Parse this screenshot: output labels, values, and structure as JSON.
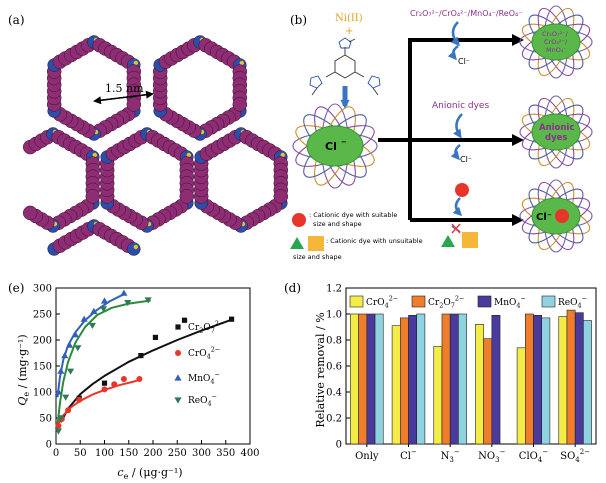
{
  "panel_a": {
    "label": "(a)",
    "scale_label": "1.5 nm",
    "colors": {
      "ring": "#8e2d74",
      "node": "#2a4fa8",
      "metal": "#e8c22c"
    }
  },
  "panel_b": {
    "label": "(b)",
    "ni_label": "Ni(II)",
    "plus_label": "+",
    "cl_label": "Cl",
    "cl_sup": "−",
    "top_anions": "Cr₂O₇²⁻/CrO₄²⁻/MnO₄⁻/ReO₄⁻",
    "top_cage_text_1": "Cr₂O₇²⁻/",
    "top_cage_text_2": "CrO₄²⁻/",
    "top_cage_text_3": "MnO₄⁻",
    "cl_release_top": "Cl⁻",
    "anionic_dyes_label": "Anionic dyes",
    "anionic_cage_text_1": "Anionic",
    "anionic_cage_text_2": "dyes",
    "cl_release_mid": "Cl⁻",
    "bottom_cage_text": "Cl⁻",
    "legend_cationic_suitable_1": ": Cationic dye with suitable",
    "legend_cationic_suitable_2": "size and shape",
    "legend_cationic_unsuitable_1": ": Cationic dye with unsuitable",
    "legend_cationic_unsuitable_2": "size and shape",
    "colors": {
      "arrow": "#3a75c4",
      "cage": "#5ab84a",
      "red": "#e8352a",
      "green": "#29a650",
      "orange": "#f5b63a",
      "purple": "#8a2f8c",
      "cross": "#e04040"
    }
  },
  "chart_data": [
    {
      "type": "scatter",
      "panel_label": "(e)",
      "xlim": [
        0,
        400
      ],
      "ylim": [
        0,
        300
      ],
      "xticks": [
        0,
        50,
        100,
        150,
        200,
        250,
        300,
        350,
        400
      ],
      "yticks": [
        0,
        50,
        100,
        150,
        200,
        250,
        300
      ],
      "ylabel_main": "Q",
      "ylabel_sub": "e",
      "ylabel_unit": " / (mg·g⁻¹)",
      "xlabel_main": "c",
      "xlabel_sub": "e",
      "xlabel_unit": " / (μg·g⁻¹)",
      "series": [
        {
          "name_base": "Cr",
          "name_sub": "2",
          "name_mid": "O",
          "name_sub2": "7",
          "name_sup": "2−",
          "color": "#111111",
          "marker": "square",
          "x": [
            12,
            48,
            100,
            175,
            205,
            265,
            362
          ],
          "y": [
            50,
            88,
            117,
            170,
            205,
            238,
            240
          ]
        },
        {
          "name_base": "CrO",
          "name_sub": "4",
          "name_sup": "2−",
          "color": "#e8352a",
          "marker": "circle",
          "x": [
            5,
            12,
            25,
            48,
            100,
            120,
            140,
            172
          ],
          "y": [
            35,
            48,
            65,
            85,
            105,
            115,
            125,
            125
          ]
        },
        {
          "name_base": "MnO",
          "name_sub": "4",
          "name_sup": "−",
          "color": "#3060b8",
          "marker": "triangle-up",
          "x": [
            5,
            10,
            18,
            28,
            40,
            58,
            78,
            100,
            140
          ],
          "y": [
            100,
            140,
            170,
            190,
            210,
            240,
            255,
            275,
            290
          ]
        },
        {
          "name_base": "ReO",
          "name_sub": "4",
          "name_sup": "−",
          "color": "#2e7a58",
          "marker": "triangle-down",
          "x": [
            5,
            10,
            20,
            30,
            45,
            75,
            98,
            148,
            190
          ],
          "y": [
            25,
            50,
            90,
            140,
            185,
            228,
            260,
            272,
            277
          ]
        }
      ],
      "fit_lines": [
        {
          "color": "#111111",
          "x": [
            10,
            25,
            50,
            75,
            100,
            150,
            200,
            250,
            300,
            365
          ],
          "y": [
            42,
            68,
            96,
            115,
            131,
            158,
            180,
            200,
            218,
            240
          ]
        },
        {
          "color": "#e8352a",
          "x": [
            5,
            15,
            30,
            50,
            75,
            100,
            130,
            160,
            175
          ],
          "y": [
            38,
            55,
            70,
            83,
            95,
            104,
            113,
            120,
            124
          ]
        },
        {
          "color": "#3060b8",
          "x": [
            3,
            8,
            15,
            25,
            40,
            60,
            85,
            110,
            140
          ],
          "y": [
            90,
            128,
            162,
            190,
            215,
            238,
            258,
            274,
            288
          ]
        },
        {
          "color": "#2e8a3a",
          "x": [
            3,
            8,
            15,
            25,
            40,
            60,
            85,
            115,
            150,
            195
          ],
          "y": [
            35,
            78,
            120,
            158,
            195,
            225,
            248,
            262,
            270,
            276
          ]
        }
      ]
    },
    {
      "type": "bar",
      "panel_label": "(d)",
      "ylabel": "Relative removal / %",
      "ylim": [
        0,
        1.2
      ],
      "yticks": [
        0,
        0.2,
        0.4,
        0.6,
        0.8,
        1.0,
        1.2
      ],
      "ytick_labels": [
        "0",
        "0.2",
        "0.4",
        "0.6",
        "0.8",
        "1.0",
        "1.2"
      ],
      "categories": [
        {
          "base": "Only",
          "sub": "",
          "sup": ""
        },
        {
          "base": "Cl",
          "sub": "",
          "sup": "−"
        },
        {
          "base": "N",
          "sub": "3",
          "sup": "−"
        },
        {
          "base": "NO",
          "sub": "3",
          "sup": "−"
        },
        {
          "base": "ClO",
          "sub": "4",
          "sup": "−"
        },
        {
          "base": "SO",
          "sub": "4",
          "sup": "2−"
        }
      ],
      "series": [
        {
          "name_base": "CrO",
          "name_sub": "4",
          "name_sup": "2−",
          "color": "#f4ec47",
          "values": [
            1.0,
            0.91,
            0.75,
            0.92,
            0.74,
            0.98
          ]
        },
        {
          "name_base": "Cr",
          "name_sub": "2",
          "name_mid": "O",
          "name_sub2": "7",
          "name_sup": "2−",
          "color": "#f07d2c",
          "values": [
            1.0,
            0.97,
            1.0,
            0.81,
            1.0,
            1.03
          ]
        },
        {
          "name_base": "MnO",
          "name_sub": "4",
          "name_sup": "−",
          "color": "#4a3a9c",
          "values": [
            1.0,
            0.99,
            1.0,
            0.99,
            0.99,
            1.01
          ]
        },
        {
          "name_base": "ReO",
          "name_sub": "4",
          "name_sup": "−",
          "color": "#8fd3e0",
          "values": [
            1.0,
            1.0,
            1.0,
            0.0,
            0.97,
            0.95
          ]
        }
      ],
      "legend_placement": "top"
    }
  ]
}
